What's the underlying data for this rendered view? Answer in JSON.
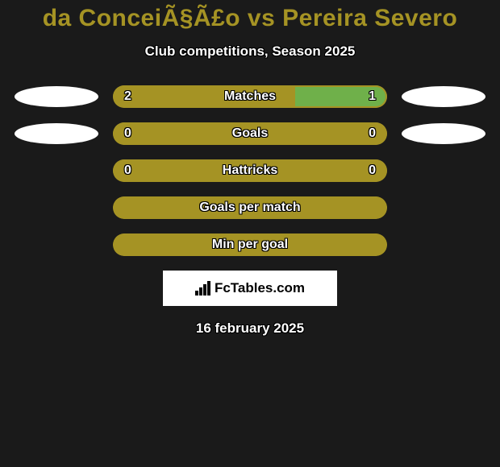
{
  "title": "da ConceiÃ§Ã£o vs Pereira Severo",
  "title_color": "#a59324",
  "subtitle": "Club competitions, Season 2025",
  "date": "16 february 2025",
  "background_color": "#1a1a1a",
  "ellipse_color": "#ffffff",
  "logo_text": "FcTables.com",
  "logo_bg": "#ffffff",
  "rows": [
    {
      "type": "split",
      "label": "Matches",
      "left_value": "2",
      "right_value": "1",
      "left_pct": 66.6,
      "right_pct": 33.4,
      "left_color": "#a59324",
      "right_color": "#6fb04a",
      "show_ellipses": true
    },
    {
      "type": "split",
      "label": "Goals",
      "left_value": "0",
      "right_value": "0",
      "left_pct": 50,
      "right_pct": 50,
      "left_color": "#a59324",
      "right_color": "#a59324",
      "show_ellipses": true
    },
    {
      "type": "split",
      "label": "Hattricks",
      "left_value": "0",
      "right_value": "0",
      "left_pct": 50,
      "right_pct": 50,
      "left_color": "#a59324",
      "right_color": "#a59324",
      "show_ellipses": false
    },
    {
      "type": "single",
      "label": "Goals per match",
      "bg_color": "#a59324",
      "show_ellipses": false
    },
    {
      "type": "single",
      "label": "Min per goal",
      "bg_color": "#a59324",
      "show_ellipses": false
    }
  ]
}
